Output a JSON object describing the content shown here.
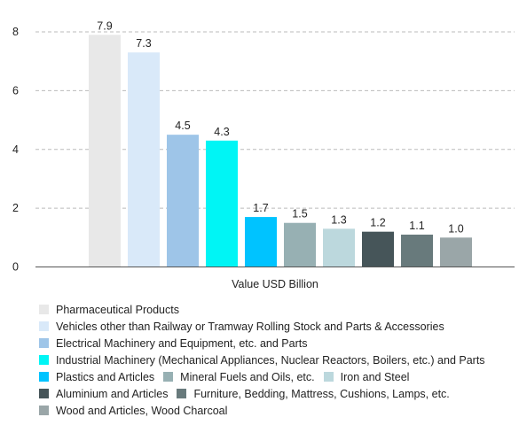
{
  "chart_data": {
    "type": "bar",
    "xlabel": "Value USD Billion",
    "ylim": [
      0,
      8
    ],
    "yticks": [
      0,
      2,
      4,
      6,
      8
    ],
    "grid": "horizontal-dashed",
    "legend_position": "bottom",
    "series": [
      {
        "name": "Pharmaceutical Products",
        "value": 7.9,
        "label": "7.9",
        "color": "#e8e8e8"
      },
      {
        "name": "Vehicles other than Railway or Tramway Rolling Stock and Parts & Accessories",
        "value": 7.3,
        "label": "7.3",
        "color": "#d9e9f9"
      },
      {
        "name": "Electrical Machinery and Equipment, etc. and Parts",
        "value": 4.5,
        "label": "4.5",
        "color": "#9ec5e8"
      },
      {
        "name": "Industrial Machinery (Mechanical Appliances, Nuclear Reactors, Boilers, etc.) and Parts",
        "value": 4.3,
        "label": "4.3",
        "color": "#00f5f5"
      },
      {
        "name": "Plastics and Articles",
        "value": 1.7,
        "label": "1.7",
        "color": "#00c3ff"
      },
      {
        "name": "Mineral Fuels and Oils, etc.",
        "value": 1.5,
        "label": "1.5",
        "color": "#97b0b3"
      },
      {
        "name": "Iron and Steel",
        "value": 1.3,
        "label": "1.3",
        "color": "#bcd8dd"
      },
      {
        "name": "Aluminium and Articles",
        "value": 1.2,
        "label": "1.2",
        "color": "#465559"
      },
      {
        "name": "Furniture, Bedding, Mattress, Cushions, Lamps, etc.",
        "value": 1.1,
        "label": "1.1",
        "color": "#687a7c"
      },
      {
        "name": "Wood and Articles, Wood Charcoal",
        "value": 1.0,
        "label": "1.0",
        "color": "#9aa6a8"
      }
    ]
  }
}
